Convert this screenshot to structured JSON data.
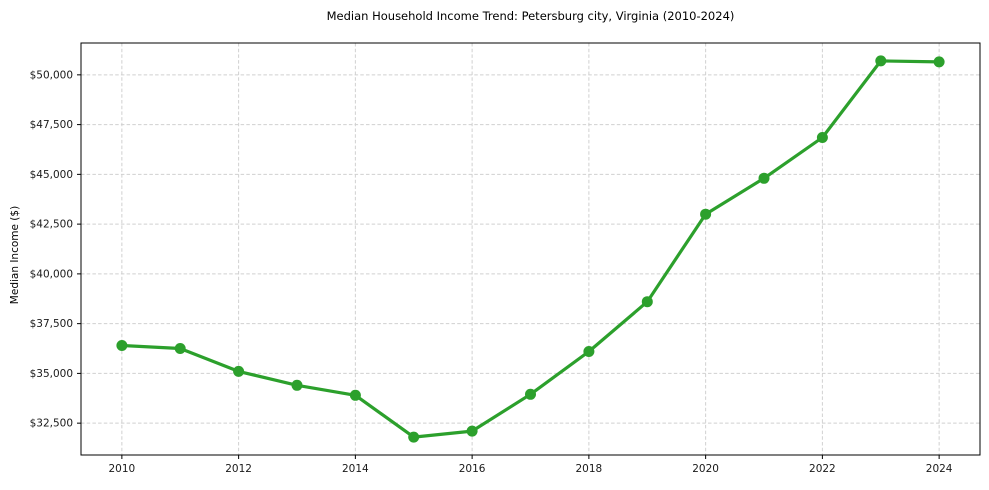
{
  "chart_data": {
    "type": "line",
    "title": "Median Household Income Trend: Petersburg city, Virginia (2010-2024)",
    "xlabel": "",
    "ylabel": "Median Income ($)",
    "series": [
      {
        "name": "Median Household Income",
        "x": [
          2010,
          2011,
          2012,
          2013,
          2014,
          2015,
          2016,
          2017,
          2018,
          2019,
          2020,
          2021,
          2022,
          2023,
          2024
        ],
        "values": [
          36400,
          36250,
          35100,
          34400,
          33900,
          31800,
          32100,
          33950,
          36100,
          38600,
          43000,
          44800,
          46850,
          50700,
          50650
        ]
      }
    ],
    "xticks": {
      "values": [
        2010,
        2012,
        2014,
        2016,
        2018,
        2020,
        2022,
        2024
      ],
      "labels": [
        "2010",
        "2012",
        "2014",
        "2016",
        "2018",
        "2020",
        "2022",
        "2024"
      ]
    },
    "yticks": {
      "values": [
        32500,
        35000,
        37500,
        40000,
        42500,
        45000,
        47500,
        50000
      ],
      "labels": [
        "$32,500",
        "$35,000",
        "$37,500",
        "$40,000",
        "$42,500",
        "$45,000",
        "$47,500",
        "$50,000"
      ]
    },
    "xlim": [
      2009.3,
      2024.7
    ],
    "ylim": [
      30900,
      51600
    ],
    "grid": true,
    "legend": "none",
    "style": {
      "line_color": "#2ca02c",
      "marker": "circle",
      "marker_color": "#2ca02c",
      "grid_color": "#d0d0d0",
      "spine_color": "#000000",
      "tick_text_color": "#1a1a1a",
      "background": "#ffffff"
    }
  }
}
